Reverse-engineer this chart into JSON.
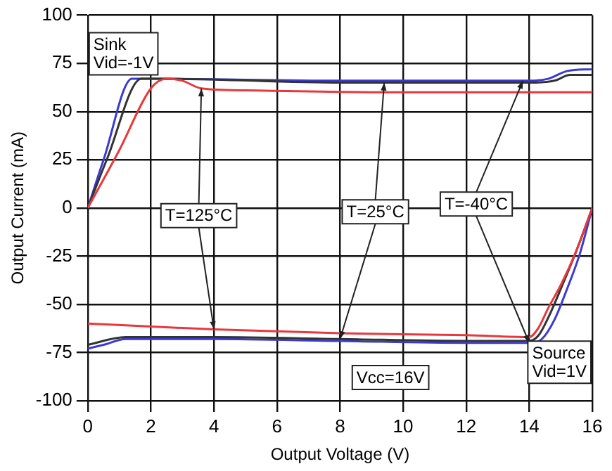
{
  "chart_data": {
    "type": "line",
    "xlabel": "Output Voltage (V)",
    "ylabel": "Output Current (mA)",
    "xlim": [
      0,
      16
    ],
    "xticks": [
      0,
      2,
      4,
      6,
      8,
      10,
      12,
      14,
      16
    ],
    "ylim": [
      -100,
      100
    ],
    "yticks": [
      -100,
      -75,
      -50,
      -25,
      0,
      25,
      50,
      75,
      100
    ],
    "grid": true,
    "legend": false,
    "marker": "none",
    "line_style": "solid",
    "series": [
      {
        "color": "#e8383d",
        "x": [
          0,
          1,
          2,
          2.5,
          3,
          3.6,
          5,
          10,
          16
        ],
        "values": [
          0,
          30,
          62,
          67,
          66,
          62,
          61,
          60,
          60
        ]
      },
      {
        "color": "#333333",
        "x": [
          0,
          0.6,
          1.7,
          2.5,
          8,
          14,
          14.8,
          15.3,
          16
        ],
        "values": [
          0,
          25,
          67,
          67,
          65,
          65,
          66,
          69,
          69
        ]
      },
      {
        "color": "#3a3ad0",
        "x": [
          0,
          0.5,
          1.4,
          2,
          8,
          14,
          14.6,
          15.2,
          16
        ],
        "values": [
          0,
          25,
          67,
          67,
          66,
          66,
          67,
          71,
          72
        ]
      },
      {
        "color": "#e8383d",
        "x": [
          0,
          4,
          8,
          12,
          14,
          14.3,
          14.6,
          15,
          15.5,
          16
        ],
        "values": [
          -60,
          -63,
          -65,
          -66,
          -67,
          -62,
          -52,
          -40,
          -22,
          0
        ]
      },
      {
        "color": "#333333",
        "x": [
          0,
          1.2,
          4,
          8,
          12,
          14,
          14.3,
          14.6,
          15,
          15.5,
          16
        ],
        "values": [
          -71,
          -67,
          -67,
          -68,
          -69,
          -69,
          -66,
          -57,
          -42,
          -22,
          0
        ]
      },
      {
        "color": "#3a3ad0",
        "x": [
          0,
          0.5,
          1.2,
          4,
          8,
          12,
          14,
          14.4,
          14.8,
          15.2,
          15.6,
          16
        ],
        "values": [
          -73,
          -71,
          -68,
          -68,
          -69,
          -70,
          -70,
          -68,
          -58,
          -42,
          -24,
          0
        ]
      }
    ],
    "annotations": [
      "Sink\nVid=-1V",
      {
        "text": "T=125°C",
        "x": 3.6,
        "y": 62
      },
      {
        "text": "T=25°C",
        "x": 9.4,
        "y": 65
      },
      {
        "text": "T=-40°C",
        "x": 13.8,
        "y": 66
      },
      "Source\nVid=1V",
      "Vcc=16V"
    ]
  }
}
